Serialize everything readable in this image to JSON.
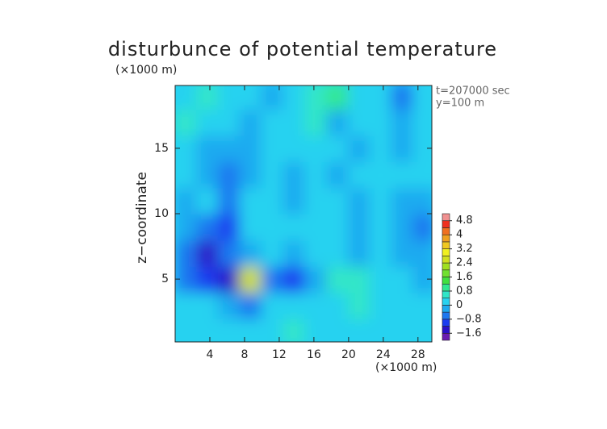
{
  "chart_data": {
    "type": "contour",
    "title": "disturbunce of potential temperature",
    "y_unit": "(×1000 m)",
    "x_unit": "(×1000 m)",
    "ylabel": "z−coordinate",
    "annotations": [
      "t=207000 sec",
      "y=100 m"
    ],
    "xlim": [
      0,
      29.6
    ],
    "ylim": [
      0.2,
      19.8
    ],
    "xticks": [
      4,
      8,
      12,
      16,
      20,
      24,
      28
    ],
    "yticks": [
      5,
      10,
      15
    ],
    "x": [
      1.25,
      3.75,
      6.25,
      8.75,
      11.25,
      13.75,
      16.25,
      18.75,
      21.25,
      23.75,
      26.25,
      28.75
    ],
    "y": [
      1,
      3,
      5,
      7,
      9,
      11,
      13,
      15,
      17,
      19
    ],
    "z": [
      [
        0.2,
        0.3,
        0.1,
        0.2,
        0.3,
        0.4,
        0.2,
        0.3,
        0.2,
        0.3,
        0.1,
        0.2
      ],
      [
        0.3,
        0.2,
        -0.3,
        -0.5,
        0.2,
        0.3,
        0.2,
        0.3,
        0.4,
        0.2,
        0.3,
        0.2
      ],
      [
        -0.6,
        -1.0,
        -1.4,
        2.4,
        -0.8,
        -0.9,
        -0.3,
        0.5,
        0.6,
        0.3,
        0.2,
        -0.2
      ],
      [
        -0.8,
        -1.4,
        -0.6,
        -0.4,
        0.1,
        -0.2,
        0.2,
        0.1,
        -0.2,
        0.0,
        -0.3,
        -0.4
      ],
      [
        -0.2,
        -0.6,
        -1.0,
        0.1,
        0.2,
        0.1,
        0.2,
        0.1,
        -0.3,
        0.2,
        -0.4,
        -0.6
      ],
      [
        -0.3,
        0.0,
        -0.8,
        0.2,
        0.1,
        -0.2,
        0.1,
        0.2,
        -0.4,
        0.1,
        -0.3,
        -0.4
      ],
      [
        0.1,
        -0.3,
        -0.6,
        -0.2,
        0.3,
        -0.4,
        0.1,
        -0.2,
        0.0,
        0.2,
        0.1,
        0.2
      ],
      [
        0.2,
        -0.1,
        -0.4,
        -0.3,
        0.2,
        0.0,
        0.2,
        0.3,
        -0.3,
        0.2,
        -0.2,
        0.1
      ],
      [
        0.4,
        0.3,
        0.2,
        -0.2,
        0.1,
        0.2,
        0.4,
        -0.2,
        0.3,
        0.1,
        -0.3,
        0.2
      ],
      [
        0.3,
        0.6,
        0.2,
        0.0,
        -0.4,
        0.2,
        0.5,
        0.8,
        0.3,
        0.0,
        -0.5,
        0.2
      ]
    ],
    "levels": [
      -2.0,
      -1.6,
      -1.2,
      -0.8,
      -0.4,
      0,
      0.4,
      0.8,
      1.2,
      1.6,
      2.0,
      2.4,
      2.8,
      3.2,
      3.6,
      4.0,
      4.4,
      4.8,
      5.2
    ],
    "colors": [
      "#6a1bb0",
      "#2a10c8",
      "#1a3cf0",
      "#1e78f0",
      "#1eaaf0",
      "#28d2f0",
      "#30e6c8",
      "#30e890",
      "#40e040",
      "#70e030",
      "#a0e020",
      "#d0e020",
      "#f0f020",
      "#f0c820",
      "#f0a020",
      "#f07020",
      "#f03020",
      "#f09090"
    ],
    "colorbar_ticks": [
      {
        "value": -1.6,
        "label": "−1.6"
      },
      {
        "value": -0.8,
        "label": "−0.8"
      },
      0,
      0.8,
      1.6,
      2.4,
      3.2,
      4,
      4.8
    ]
  }
}
